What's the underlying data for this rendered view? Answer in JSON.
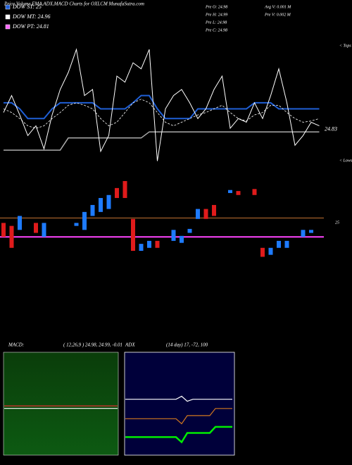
{
  "header": {
    "title": "Price,Volume,EMA,ADX,MACD Charts for OXLCM MunafaSutra.com"
  },
  "chart_data": [
    {
      "type": "line",
      "legend": [
        "DOW ST: 25",
        "DOW MT: 24.96",
        "DOW PT: 24.81"
      ],
      "stats": [
        "Pre O: 24.98",
        "Pre H: 24.99",
        "Pre L: 24.98",
        "Pre C: 24.98"
      ],
      "volume_stats": [
        "Avg V: 0.001 M",
        "Pre V: 0.002 M"
      ],
      "annotations": [
        "< Tops",
        "< Lows"
      ],
      "last_label": {
        "value": 24.83,
        "label": "24.83"
      },
      "ylim": [
        24.55,
        25.52
      ],
      "color": "#ffffff",
      "values": [
        24.97,
        25.11,
        24.95,
        24.78,
        24.86,
        24.67,
        24.95,
        25.16,
        25.3,
        25.49,
        25.11,
        25.16,
        24.65,
        24.78,
        25.27,
        25.22,
        25.38,
        25.33,
        25.49,
        24.57,
        25.0,
        25.11,
        25.16,
        25.05,
        24.92,
        25.0,
        25.16,
        25.27,
        24.84,
        24.92,
        24.89,
        25.05,
        24.92,
        25.11,
        25.33,
        25.05,
        24.7,
        24.78,
        24.89,
        24.86
      ],
      "series": [
        {
          "name": "DOW ST: 25",
          "color": "#1f5fd6",
          "values": [
            25.05,
            25.05,
            25.0,
            24.92,
            24.92,
            24.92,
            25.0,
            25.05,
            25.05,
            25.05,
            25.05,
            25.05,
            25.0,
            25.0,
            25.0,
            25.0,
            25.05,
            25.11,
            25.11,
            25.0,
            24.92,
            24.92,
            24.92,
            24.92,
            25.0,
            25.0,
            25.0,
            25.0,
            25.0,
            25.0,
            25.0,
            25.05,
            25.05,
            25.05,
            25.0,
            25.0,
            25.0,
            25.0,
            25.0,
            25.0
          ]
        },
        {
          "name": "DOW MT: 24.96",
          "color": "#ffffff",
          "values": [
            25.0,
            24.97,
            24.92,
            24.86,
            24.84,
            24.86,
            24.92,
            24.97,
            25.03,
            25.05,
            25.03,
            25.0,
            24.92,
            24.86,
            24.89,
            24.97,
            25.05,
            25.08,
            25.05,
            24.97,
            24.89,
            24.86,
            24.89,
            24.92,
            24.95,
            24.97,
            25.0,
            25.03,
            24.97,
            24.92,
            24.9,
            24.95,
            24.97,
            25.03,
            25.03,
            24.97,
            24.92,
            24.89,
            24.9,
            24.92
          ]
        },
        {
          "name": "DOW PT: 24.81",
          "color": "#ff66ff",
          "line_color": "#aaaaaa",
          "values": [
            24.66,
            24.66,
            24.66,
            24.66,
            24.66,
            24.66,
            24.66,
            24.66,
            24.76,
            24.76,
            24.76,
            24.76,
            24.76,
            24.76,
            24.76,
            24.76,
            24.76,
            24.76,
            24.81,
            24.81,
            24.81,
            24.81,
            24.81,
            24.81,
            24.81,
            24.81,
            24.81,
            24.81,
            24.81,
            24.81,
            24.81,
            24.81,
            24.81,
            24.81,
            24.81,
            24.81,
            24.81,
            24.81,
            24.81,
            24.81
          ]
        }
      ]
    },
    {
      "type": "candlestick",
      "ylim": [
        24.55,
        25.49
      ],
      "up_color": "#1e7bff",
      "down_color": "#e01b1b",
      "open": [
        24.95,
        24.92,
        24.88,
        null,
        24.95,
        24.81,
        null,
        null,
        null,
        24.92,
        24.88,
        25.02,
        25.06,
        25.09,
        25.3,
        25.37,
        24.99,
        24.67,
        24.7,
        24.77,
        null,
        24.77,
        24.75,
        24.85,
        24.99,
        25.09,
        25.13,
        null,
        25.25,
        25.27,
        null,
        25.29,
        24.7,
        24.63,
        24.7,
        24.7,
        null,
        24.81,
        24.85,
        null
      ],
      "close": [
        24.81,
        24.7,
        25.02,
        null,
        24.85,
        24.95,
        null,
        null,
        null,
        24.95,
        25.06,
        25.13,
        25.2,
        25.23,
        25.2,
        25.2,
        24.67,
        24.74,
        24.77,
        24.7,
        null,
        24.88,
        24.82,
        24.89,
        25.09,
        24.99,
        25.02,
        null,
        25.28,
        25.23,
        null,
        25.23,
        24.61,
        24.7,
        24.77,
        24.77,
        null,
        24.88,
        24.88,
        null
      ],
      "hlines": [
        {
          "value": 25,
          "label": "25",
          "color": "#c87533"
        },
        {
          "value": 24.81,
          "color": "#ff44ff"
        }
      ]
    },
    {
      "type": "line",
      "title": "MACD:",
      "subtitle": "( 12,26,9 ) 24.98, 24.99, -0.01",
      "ylim": [
        24.8,
        25.2
      ],
      "lines": [
        {
          "color": "#e03030",
          "values": [
            24.99,
            24.99,
            24.99,
            24.99,
            24.99,
            24.99,
            24.99,
            24.99,
            24.99,
            24.99,
            24.99,
            24.99,
            24.99,
            24.99,
            24.99,
            24.99,
            24.99,
            24.99,
            24.99,
            24.99
          ]
        },
        {
          "color": "#ffffff",
          "values": [
            24.98,
            24.98,
            24.98,
            24.98,
            24.98,
            24.98,
            24.98,
            24.98,
            24.98,
            24.98,
            24.98,
            24.98,
            24.98,
            24.98,
            24.98,
            24.98,
            24.98,
            24.98,
            24.98,
            24.98
          ]
        }
      ]
    },
    {
      "type": "line",
      "title": "ADX",
      "subtitle": "(14 day) 17, -72, 100",
      "ylim": [
        0,
        100
      ],
      "lines": [
        {
          "color": "#ffffff",
          "values": [
            54,
            54,
            54,
            54,
            54,
            54,
            54,
            54,
            54,
            54,
            57,
            52,
            54,
            54,
            54,
            54,
            54,
            54,
            54,
            54
          ]
        },
        {
          "color": "#d2781e",
          "values": [
            35,
            35,
            35,
            35,
            35,
            35,
            35,
            35,
            35,
            35,
            30,
            38,
            38,
            38,
            38,
            38,
            45,
            45,
            45,
            45
          ]
        },
        {
          "color": "#00ee00",
          "values": [
            17,
            17,
            17,
            17,
            17,
            17,
            17,
            17,
            17,
            17,
            12,
            21,
            21,
            21,
            21,
            21,
            27,
            27,
            27,
            27
          ]
        }
      ]
    }
  ]
}
